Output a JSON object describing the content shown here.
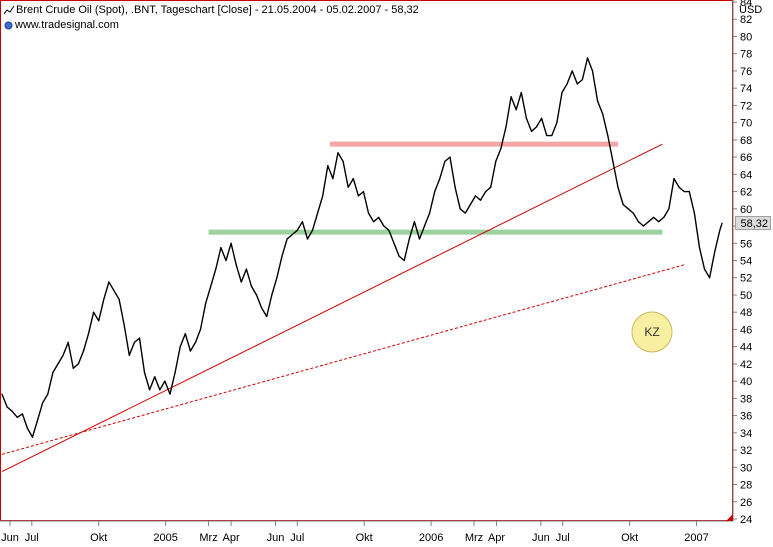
{
  "header": {
    "title": "Brent Crude Oil (Spot), .BNT, Tageschart [Close] - 21.05.2004 - 05.02.2007 - 58,32",
    "source": "www.tradesignal.com",
    "unit": "USD"
  },
  "badge": {
    "label": "KZ",
    "color": "#f8f0a0"
  },
  "chart_data": {
    "type": "line",
    "title": "Brent Crude Oil (Spot), .BNT, Tageschart [Close] - 21.05.2004 - 05.02.2007 - 58,32",
    "xlabel": "",
    "ylabel": "USD",
    "x_range": [
      "2004-05-21",
      "2007-02-05"
    ],
    "ylim": [
      24,
      84
    ],
    "y_ticks": [
      24,
      26,
      28,
      30,
      32,
      34,
      36,
      38,
      40,
      42,
      44,
      46,
      48,
      50,
      52,
      54,
      56,
      58,
      60,
      62,
      64,
      66,
      68,
      70,
      72,
      74,
      76,
      78,
      80,
      82,
      84
    ],
    "x_tick_labels": [
      {
        "label": "Jun",
        "date": "2004-06-01"
      },
      {
        "label": "Jul",
        "date": "2004-07-01"
      },
      {
        "label": "Okt",
        "date": "2004-10-01"
      },
      {
        "label": "2005",
        "date": "2005-01-01"
      },
      {
        "label": "Mrz",
        "date": "2005-03-01"
      },
      {
        "label": "Apr",
        "date": "2005-04-01"
      },
      {
        "label": "Jun",
        "date": "2005-06-01"
      },
      {
        "label": "Jul",
        "date": "2005-07-01"
      },
      {
        "label": "Okt",
        "date": "2005-10-01"
      },
      {
        "label": "2006",
        "date": "2006-01-01"
      },
      {
        "label": "Mrz",
        "date": "2006-03-01"
      },
      {
        "label": "Apr",
        "date": "2006-04-01"
      },
      {
        "label": "Jun",
        "date": "2006-06-01"
      },
      {
        "label": "Jul",
        "date": "2006-07-01"
      },
      {
        "label": "Okt",
        "date": "2006-10-01"
      },
      {
        "label": "2007",
        "date": "2007-01-01"
      }
    ],
    "last_value_label": "58,32",
    "grid": false,
    "series": [
      {
        "color": "#000000",
        "points": [
          [
            "2004-05-21",
            38.5
          ],
          [
            "2004-05-28",
            37.0
          ],
          [
            "2004-06-04",
            36.5
          ],
          [
            "2004-06-11",
            35.8
          ],
          [
            "2004-06-18",
            36.2
          ],
          [
            "2004-06-25",
            34.5
          ],
          [
            "2004-07-02",
            33.5
          ],
          [
            "2004-07-09",
            35.5
          ],
          [
            "2004-07-16",
            37.5
          ],
          [
            "2004-07-23",
            38.5
          ],
          [
            "2004-07-30",
            41.0
          ],
          [
            "2004-08-06",
            42.0
          ],
          [
            "2004-08-13",
            43.0
          ],
          [
            "2004-08-20",
            44.5
          ],
          [
            "2004-08-27",
            41.5
          ],
          [
            "2004-09-03",
            42.0
          ],
          [
            "2004-09-10",
            43.5
          ],
          [
            "2004-09-17",
            45.5
          ],
          [
            "2004-09-24",
            48.0
          ],
          [
            "2004-10-01",
            47.0
          ],
          [
            "2004-10-08",
            49.5
          ],
          [
            "2004-10-15",
            51.5
          ],
          [
            "2004-10-22",
            50.5
          ],
          [
            "2004-10-29",
            49.5
          ],
          [
            "2004-11-05",
            46.5
          ],
          [
            "2004-11-12",
            43.0
          ],
          [
            "2004-11-19",
            44.5
          ],
          [
            "2004-11-26",
            45.0
          ],
          [
            "2004-12-03",
            41.0
          ],
          [
            "2004-12-10",
            39.0
          ],
          [
            "2004-12-17",
            40.5
          ],
          [
            "2004-12-24",
            39.0
          ],
          [
            "2004-12-31",
            40.0
          ],
          [
            "2005-01-07",
            38.5
          ],
          [
            "2005-01-14",
            41.0
          ],
          [
            "2005-01-21",
            44.0
          ],
          [
            "2005-01-28",
            45.5
          ],
          [
            "2005-02-04",
            43.5
          ],
          [
            "2005-02-11",
            44.5
          ],
          [
            "2005-02-18",
            46.0
          ],
          [
            "2005-02-25",
            49.0
          ],
          [
            "2005-03-04",
            51.0
          ],
          [
            "2005-03-11",
            53.0
          ],
          [
            "2005-03-18",
            55.5
          ],
          [
            "2005-03-25",
            54.0
          ],
          [
            "2005-04-01",
            56.0
          ],
          [
            "2005-04-08",
            53.5
          ],
          [
            "2005-04-15",
            51.5
          ],
          [
            "2005-04-22",
            53.0
          ],
          [
            "2005-04-29",
            51.0
          ],
          [
            "2005-05-06",
            50.0
          ],
          [
            "2005-05-13",
            48.5
          ],
          [
            "2005-05-20",
            47.5
          ],
          [
            "2005-05-27",
            50.0
          ],
          [
            "2005-06-03",
            52.0
          ],
          [
            "2005-06-10",
            54.5
          ],
          [
            "2005-06-17",
            56.5
          ],
          [
            "2005-06-24",
            57.0
          ],
          [
            "2005-07-01",
            57.5
          ],
          [
            "2005-07-08",
            58.5
          ],
          [
            "2005-07-15",
            56.5
          ],
          [
            "2005-07-22",
            57.5
          ],
          [
            "2005-07-29",
            59.5
          ],
          [
            "2005-08-05",
            61.5
          ],
          [
            "2005-08-12",
            65.0
          ],
          [
            "2005-08-19",
            63.5
          ],
          [
            "2005-08-26",
            66.5
          ],
          [
            "2005-09-02",
            65.5
          ],
          [
            "2005-09-09",
            62.5
          ],
          [
            "2005-09-16",
            63.5
          ],
          [
            "2005-09-23",
            61.5
          ],
          [
            "2005-09-30",
            62.0
          ],
          [
            "2005-10-07",
            59.5
          ],
          [
            "2005-10-14",
            58.5
          ],
          [
            "2005-10-21",
            59.0
          ],
          [
            "2005-10-28",
            58.0
          ],
          [
            "2005-11-04",
            57.5
          ],
          [
            "2005-11-11",
            56.0
          ],
          [
            "2005-11-18",
            54.5
          ],
          [
            "2005-11-25",
            54.0
          ],
          [
            "2005-12-02",
            56.5
          ],
          [
            "2005-12-09",
            58.5
          ],
          [
            "2005-12-16",
            56.5
          ],
          [
            "2005-12-23",
            58.0
          ],
          [
            "2005-12-30",
            59.5
          ],
          [
            "2006-01-06",
            62.0
          ],
          [
            "2006-01-13",
            63.5
          ],
          [
            "2006-01-20",
            65.5
          ],
          [
            "2006-01-27",
            66.0
          ],
          [
            "2006-02-03",
            62.5
          ],
          [
            "2006-02-10",
            60.0
          ],
          [
            "2006-02-17",
            59.5
          ],
          [
            "2006-02-24",
            60.5
          ],
          [
            "2006-03-03",
            61.5
          ],
          [
            "2006-03-10",
            61.0
          ],
          [
            "2006-03-17",
            62.0
          ],
          [
            "2006-03-24",
            62.5
          ],
          [
            "2006-03-31",
            65.5
          ],
          [
            "2006-04-07",
            67.0
          ],
          [
            "2006-04-14",
            69.5
          ],
          [
            "2006-04-21",
            73.0
          ],
          [
            "2006-04-28",
            71.5
          ],
          [
            "2006-05-05",
            73.5
          ],
          [
            "2006-05-12",
            70.5
          ],
          [
            "2006-05-19",
            69.0
          ],
          [
            "2006-05-26",
            69.5
          ],
          [
            "2006-06-02",
            70.5
          ],
          [
            "2006-06-09",
            68.5
          ],
          [
            "2006-06-16",
            68.5
          ],
          [
            "2006-06-23",
            70.0
          ],
          [
            "2006-06-30",
            73.5
          ],
          [
            "2006-07-07",
            74.5
          ],
          [
            "2006-07-14",
            76.0
          ],
          [
            "2006-07-21",
            74.5
          ],
          [
            "2006-07-28",
            75.0
          ],
          [
            "2006-08-04",
            77.5
          ],
          [
            "2006-08-11",
            76.0
          ],
          [
            "2006-08-18",
            72.5
          ],
          [
            "2006-08-25",
            71.0
          ],
          [
            "2006-09-01",
            68.5
          ],
          [
            "2006-09-08",
            65.5
          ],
          [
            "2006-09-15",
            62.5
          ],
          [
            "2006-09-22",
            60.5
          ],
          [
            "2006-09-29",
            60.0
          ],
          [
            "2006-10-06",
            59.5
          ],
          [
            "2006-10-13",
            58.5
          ],
          [
            "2006-10-20",
            58.0
          ],
          [
            "2006-10-27",
            58.5
          ],
          [
            "2006-11-03",
            59.0
          ],
          [
            "2006-11-10",
            58.5
          ],
          [
            "2006-11-17",
            59.0
          ],
          [
            "2006-11-24",
            60.0
          ],
          [
            "2006-12-01",
            63.5
          ],
          [
            "2006-12-08",
            62.5
          ],
          [
            "2006-12-15",
            62.0
          ],
          [
            "2006-12-22",
            62.0
          ],
          [
            "2006-12-29",
            59.5
          ],
          [
            "2007-01-05",
            55.5
          ],
          [
            "2007-01-12",
            53.0
          ],
          [
            "2007-01-19",
            52.0
          ],
          [
            "2007-01-26",
            55.0
          ],
          [
            "2007-02-02",
            57.5
          ],
          [
            "2007-02-05",
            58.32
          ]
        ]
      }
    ],
    "annotations": [
      {
        "type": "hline",
        "y": 57.3,
        "x_from": "2005-03-01",
        "x_to": "2006-11-15",
        "color": "#9dd19d"
      },
      {
        "type": "hline",
        "y": 67.5,
        "x_from": "2005-08-15",
        "x_to": "2006-09-15",
        "color": "#f4a6a6"
      },
      {
        "type": "trendline",
        "x_from": "2004-05-21",
        "y_from": 29.5,
        "x_to": "2006-11-15",
        "y_to": 67.5,
        "color": "#cc0000",
        "dash": false
      },
      {
        "type": "trendline",
        "x_from": "2004-05-21",
        "y_from": 31.5,
        "x_to": "2006-12-15",
        "y_to": 53.5,
        "color": "#cc0000",
        "dash": true
      }
    ]
  }
}
